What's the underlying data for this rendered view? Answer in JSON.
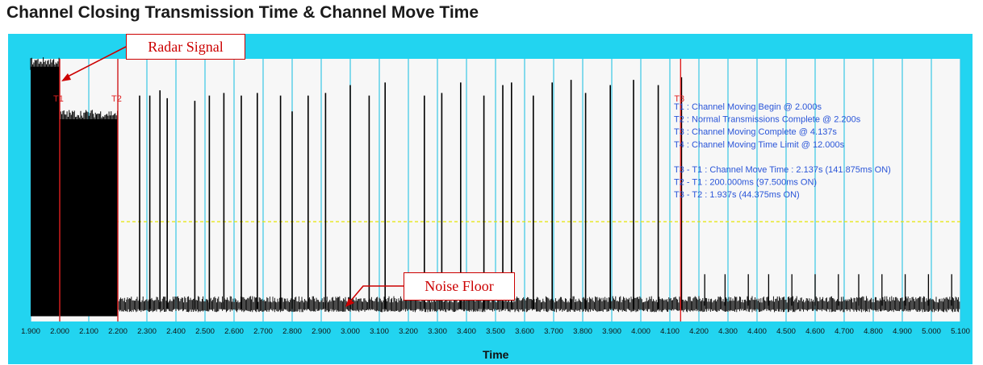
{
  "title": "Channel Closing Transmission Time & Channel Move Time",
  "colors": {
    "frame": "#22d4f0",
    "plot_bg": "#f7f7f7",
    "grid": "#38c8e6",
    "signal": "#000000",
    "marker": "#e02020",
    "annotation_text": "#2a55d8",
    "threshold": "#e6e600",
    "callout": "#cc0000"
  },
  "callouts": {
    "radar": "Radar Signal",
    "noise": "Noise Floor"
  },
  "chart_data": {
    "type": "line",
    "title": "Channel Closing Transmission Time & Channel Move Time",
    "xlabel": "Time",
    "ylabel": "",
    "xlim": [
      1.9,
      5.1
    ],
    "ylim": [
      0,
      1
    ],
    "grid": true,
    "x_tick_labels": [
      "1.900",
      "2.000",
      "2.100",
      "2.200",
      "2.300",
      "2.400",
      "2.500",
      "2.600",
      "2.700",
      "2.800",
      "2.900",
      "3.000",
      "3.100",
      "3.200",
      "3.300",
      "3.400",
      "3.500",
      "3.600",
      "3.700",
      "3.800",
      "3.900",
      "4.000",
      "4.100",
      "4.200",
      "4.300",
      "4.400",
      "4.500",
      "4.600",
      "4.700",
      "4.800",
      "4.900",
      "5.000",
      "5.100"
    ],
    "threshold_level": 0.38,
    "noise_floor": 0.06,
    "dense_blocks": [
      {
        "x_start": 1.9,
        "x_end": 2.0,
        "level": 0.97
      },
      {
        "x_start": 2.0,
        "x_end": 2.2,
        "level": 0.77
      }
    ],
    "bursts": [
      {
        "x": 2.275,
        "y": 0.86
      },
      {
        "x": 2.31,
        "y": 0.86
      },
      {
        "x": 2.345,
        "y": 0.88
      },
      {
        "x": 2.37,
        "y": 0.85
      },
      {
        "x": 2.465,
        "y": 0.84
      },
      {
        "x": 2.515,
        "y": 0.86
      },
      {
        "x": 2.565,
        "y": 0.87
      },
      {
        "x": 2.625,
        "y": 0.86
      },
      {
        "x": 2.68,
        "y": 0.87
      },
      {
        "x": 2.76,
        "y": 0.86
      },
      {
        "x": 2.8,
        "y": 0.8
      },
      {
        "x": 2.855,
        "y": 0.86
      },
      {
        "x": 2.915,
        "y": 0.87
      },
      {
        "x": 3.0,
        "y": 0.9
      },
      {
        "x": 3.065,
        "y": 0.86
      },
      {
        "x": 3.12,
        "y": 0.91
      },
      {
        "x": 3.255,
        "y": 0.86
      },
      {
        "x": 3.315,
        "y": 0.87
      },
      {
        "x": 3.38,
        "y": 0.91
      },
      {
        "x": 3.46,
        "y": 0.86
      },
      {
        "x": 3.525,
        "y": 0.9
      },
      {
        "x": 3.555,
        "y": 0.91
      },
      {
        "x": 3.63,
        "y": 0.86
      },
      {
        "x": 3.695,
        "y": 0.91
      },
      {
        "x": 3.76,
        "y": 0.92
      },
      {
        "x": 3.81,
        "y": 0.87
      },
      {
        "x": 3.895,
        "y": 0.9
      },
      {
        "x": 3.975,
        "y": 0.92
      },
      {
        "x": 4.06,
        "y": 0.9
      },
      {
        "x": 4.14,
        "y": 0.93
      }
    ],
    "small_spikes": [
      4.22,
      4.29,
      4.37,
      4.44,
      4.52,
      4.6,
      4.68,
      4.75,
      4.83,
      4.91,
      4.99,
      5.07
    ],
    "markers": [
      {
        "label": "T1",
        "x": 2.0
      },
      {
        "label": "T2",
        "x": 2.2
      },
      {
        "label": "T3",
        "x": 4.137
      }
    ],
    "annotations": [
      "T1 : Channel Moving Begin @ 2.000s",
      "T2 : Normal Transmissions Complete @ 2.200s",
      "T3 : Channel Moving Complete @ 4.137s",
      "T4 : Channel Moving Time Limit @ 12.000s",
      "",
      "T3 - T1 : Channel Move Time : 2.137s (141.875ms ON)",
      "T2 - T1 : 200.000ms (97.500ms ON)",
      "T3 - T2 : 1.937s (44.375ms ON)"
    ]
  }
}
